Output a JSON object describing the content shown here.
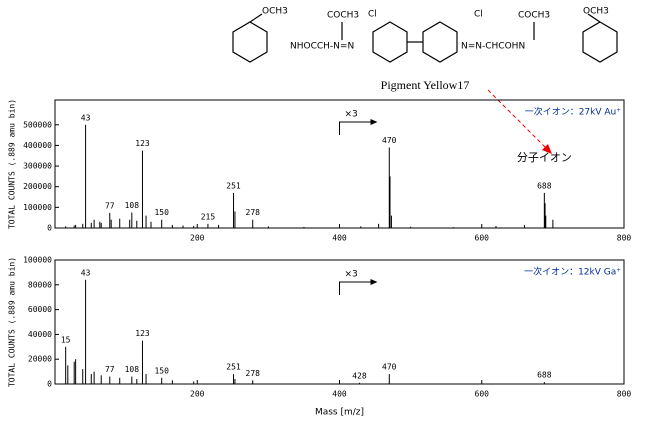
{
  "structure": {
    "methoxy_left": "OCH3",
    "linker_left": "NHOCCH-N=N",
    "acetyl_left": "COCH3",
    "chloro_left": "Cl",
    "chloro_right": "Cl",
    "acetyl_right": "COCH3",
    "linker_right": "N=N-CHCOHN",
    "methoxy_right": "OCH3",
    "name": "Pigment Yellow17"
  },
  "chart_data": [
    {
      "type": "spectrum",
      "ylabel": "TOTAL COUNTS (.889 amu bin)",
      "ion_label": "一次イオン：27kV Au⁺",
      "scale_note": "×3",
      "annotation": "分子イオン",
      "color": "#000000",
      "x": [
        15,
        27,
        29,
        39,
        43,
        51,
        55,
        63,
        65,
        77,
        79,
        91,
        105,
        108,
        115,
        123,
        128,
        135,
        150,
        165,
        180,
        195,
        215,
        230,
        251,
        253,
        278,
        300,
        350,
        400,
        430,
        455,
        470,
        471,
        473,
        500,
        560,
        620,
        660,
        688,
        689,
        690,
        700
      ],
      "values": [
        8000,
        12000,
        15000,
        20000,
        500000,
        25000,
        40000,
        30000,
        25000,
        73000,
        40000,
        45000,
        40000,
        75000,
        35000,
        375000,
        60000,
        30000,
        40000,
        15000,
        12000,
        10000,
        20000,
        15000,
        170000,
        80000,
        40000,
        8000,
        5000,
        5000,
        8000,
        20000,
        390000,
        250000,
        60000,
        6000,
        4000,
        10000,
        15000,
        170000,
        120000,
        60000,
        40000
      ],
      "labels": [
        null,
        null,
        null,
        null,
        "43",
        null,
        null,
        null,
        null,
        "77",
        null,
        null,
        null,
        "108",
        null,
        "123",
        null,
        null,
        "150",
        null,
        null,
        null,
        "215",
        null,
        "251",
        null,
        "278",
        null,
        null,
        null,
        null,
        null,
        "470",
        null,
        null,
        null,
        null,
        null,
        null,
        "688",
        null,
        null,
        null
      ],
      "xlim": [
        0,
        800
      ],
      "xticks": [
        200,
        400,
        600,
        800
      ],
      "ylim": [
        0,
        620000
      ],
      "yticks": [
        0,
        100000,
        200000,
        300000,
        400000,
        500000
      ]
    },
    {
      "type": "spectrum",
      "ylabel": "TOTAL COUNTS (.889 amu bin)",
      "xlabel": "Mass [m/z]",
      "ion_label": "一次イオン：12kV Ga⁺",
      "scale_note": "×3",
      "color": "#000000",
      "x": [
        15,
        18,
        27,
        29,
        39,
        43,
        51,
        55,
        65,
        77,
        91,
        108,
        115,
        123,
        128,
        150,
        165,
        195,
        251,
        253,
        278,
        428,
        470,
        688
      ],
      "values": [
        30000,
        15000,
        18000,
        20000,
        12000,
        84000,
        8000,
        10000,
        7000,
        6000,
        5000,
        6000,
        4000,
        35000,
        8000,
        5000,
        3000,
        2000,
        8000,
        4000,
        3000,
        1000,
        8000,
        1500
      ],
      "labels": [
        "15",
        null,
        null,
        null,
        null,
        "43",
        null,
        null,
        null,
        "77",
        null,
        "108",
        null,
        "123",
        null,
        "150",
        null,
        null,
        "251",
        null,
        "278",
        "428",
        "470",
        "688"
      ],
      "xlim": [
        0,
        800
      ],
      "xticks": [
        200,
        400,
        600,
        800
      ],
      "ylim": [
        0,
        100000
      ],
      "yticks": [
        0,
        20000,
        40000,
        60000,
        80000,
        100000
      ]
    }
  ]
}
